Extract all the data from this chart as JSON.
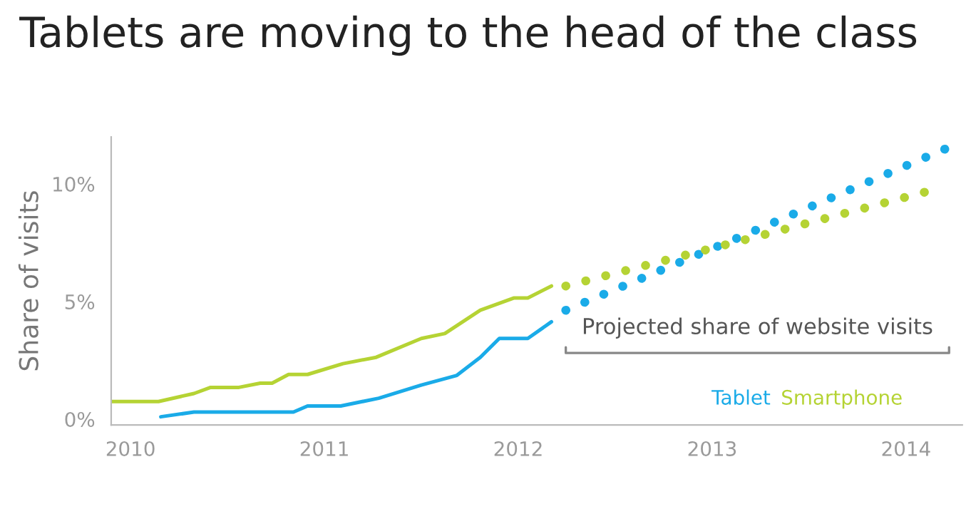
{
  "chart_data": {
    "type": "line",
    "title": "Tablets are moving to the head of the class",
    "ylabel": "Share of visits",
    "xlim": [
      2009.9,
      2014.29
    ],
    "xticks": [
      2010,
      2011,
      2012,
      2013,
      2014
    ],
    "ylim": [
      -0.25,
      12
    ],
    "yticks": [
      {
        "value": 0,
        "label": "0%"
      },
      {
        "value": 5,
        "label": "5%"
      },
      {
        "value": 10,
        "label": "10%"
      }
    ],
    "grid": false,
    "legend": "bottom right",
    "annotations": [
      "Projected share of website visits"
    ],
    "series": [
      {
        "name": "Tablet",
        "color": "#1aabe8",
        "line_style": "solid",
        "x": [
          2010.156,
          2010.327,
          2010.84,
          2010.913,
          2011.084,
          2011.28,
          2011.5,
          2011.683,
          2011.804,
          2011.902,
          2012.049,
          2012.171
        ],
        "values": [
          0.1,
          0.3,
          0.3,
          0.56,
          0.56,
          0.89,
          1.45,
          1.86,
          2.63,
          3.43,
          3.43,
          4.14
        ]
      },
      {
        "name": "Smartphone",
        "color": "#b5d334",
        "line_style": "solid",
        "x": [
          2009.905,
          2010.144,
          2010.327,
          2010.413,
          2010.559,
          2010.669,
          2010.73,
          2010.815,
          2010.913,
          2011.096,
          2011.267,
          2011.5,
          2011.621,
          2011.804,
          2011.976,
          2012.049,
          2012.171
        ],
        "values": [
          0.75,
          0.75,
          1.09,
          1.35,
          1.35,
          1.53,
          1.53,
          1.9,
          1.9,
          2.36,
          2.63,
          3.43,
          3.64,
          4.63,
          5.15,
          5.15,
          5.66
        ]
      },
      {
        "color": "#1aabe8",
        "line_style": "dotted",
        "x": [
          2012.245,
          2013.147,
          2014.222
        ],
        "values": [
          4.63,
          7.76,
          11.56
        ]
      },
      {
        "color": "#b5d334",
        "line_style": "dotted",
        "x": [
          2012.245,
          2013.147,
          2014.137
        ],
        "values": [
          5.66,
          7.58,
          9.74
        ]
      }
    ]
  }
}
